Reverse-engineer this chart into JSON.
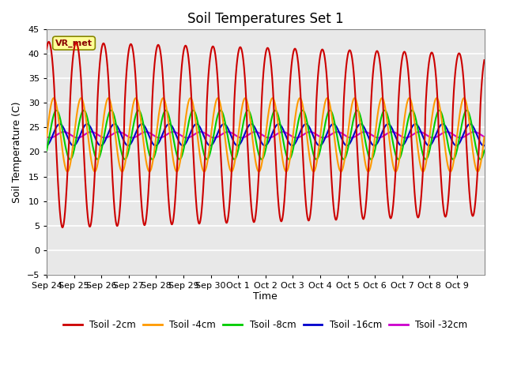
{
  "title": "Soil Temperatures Set 1",
  "xlabel": "Time",
  "ylabel": "Soil Temperature (C)",
  "ylim": [
    -5,
    45
  ],
  "background_color": "#e8e8e8",
  "grid_color": "#ffffff",
  "annotation_text": "VR_met",
  "x_tick_labels": [
    "Sep 24",
    "Sep 25",
    "Sep 26",
    "Sep 27",
    "Sep 28",
    "Sep 29",
    "Sep 30",
    "Oct 1",
    "Oct 2",
    "Oct 3",
    "Oct 4",
    "Oct 5",
    "Oct 6",
    "Oct 7",
    "Oct 8",
    "Oct 9"
  ],
  "series": {
    "Tsoil -2cm": {
      "color": "#cc0000",
      "lw": 1.5
    },
    "Tsoil -4cm": {
      "color": "#ff9900",
      "lw": 1.5
    },
    "Tsoil -8cm": {
      "color": "#00cc00",
      "lw": 1.5
    },
    "Tsoil -16cm": {
      "color": "#0000cc",
      "lw": 1.5
    },
    "Tsoil -32cm": {
      "color": "#cc00cc",
      "lw": 1.5
    }
  },
  "n_days": 16,
  "pts_per_day": 144
}
